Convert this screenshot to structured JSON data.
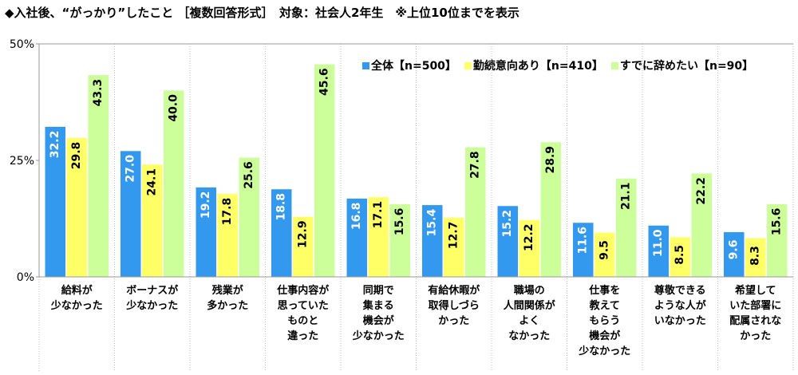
{
  "title": "◆入社後、“がっかり”したこと ［複数回答形式］　対象：社会人2年生　※上位10位までを表示",
  "colors": {
    "series": [
      "#3399ee",
      "#ffff66",
      "#ccff99"
    ],
    "series_stroke": [
      "#3399ee",
      "#e6e64d",
      "#aadd77"
    ],
    "grid": "#cccccc",
    "axis": "#999999"
  },
  "chart_data": {
    "type": "bar",
    "title": "◆入社後、“がっかり”したこと ［複数回答形式］　対象：社会人2年生　※上位10位までを表示",
    "xlabel": "",
    "ylabel": "",
    "ylim": [
      0,
      50
    ],
    "yticks": [
      0,
      25,
      50
    ],
    "ytick_labels": [
      "0%",
      "25%",
      "50%"
    ],
    "grid": false,
    "legend_position": "top-right",
    "categories": [
      [
        "給料が",
        "少なかった"
      ],
      [
        "ボーナスが",
        "少なかった"
      ],
      [
        "残業が",
        "多かった"
      ],
      [
        "仕事内容が",
        "思っていた",
        "ものと",
        "違った"
      ],
      [
        "同期で",
        "集まる",
        "機会が",
        "少なかった"
      ],
      [
        "有給休暇が",
        "取得しづら",
        "かった"
      ],
      [
        "職場の",
        "人間関係が",
        "よく",
        "なかった"
      ],
      [
        "仕事を",
        "教えて",
        "もらう",
        "機会が",
        "少なかった"
      ],
      [
        "尊敬できる",
        "ような人が",
        "いなかった"
      ],
      [
        "希望して",
        "いた部署に",
        "配属されな",
        "かった"
      ]
    ],
    "series": [
      {
        "name": "全体【n=500】",
        "values": [
          32.2,
          27.0,
          19.2,
          18.8,
          16.8,
          15.4,
          15.2,
          11.6,
          11.0,
          9.6
        ]
      },
      {
        "name": "勤続意向あり【n=410】",
        "values": [
          29.8,
          24.1,
          17.8,
          12.9,
          17.1,
          12.7,
          12.2,
          9.5,
          8.5,
          8.3
        ]
      },
      {
        "name": "すでに辞めたい【n=90】",
        "values": [
          43.3,
          40.0,
          25.6,
          45.6,
          15.6,
          27.8,
          28.9,
          21.1,
          22.2,
          15.6
        ]
      }
    ]
  }
}
